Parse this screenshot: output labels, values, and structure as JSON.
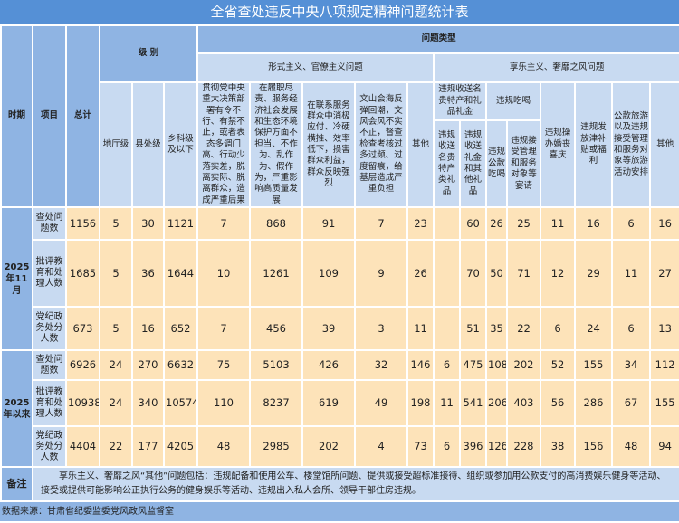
{
  "title": "全省查处违反中央八项规定精神问题统计表",
  "header": {
    "period": "时期",
    "item": "项目",
    "total": "总计",
    "level": "级 别",
    "problem_type": "问题类型",
    "levels": [
      "地厅级",
      "县处级",
      "乡科级及以下"
    ],
    "formalism": "形式主义、官僚主义问题",
    "formalism_cols": [
      "贯彻党中央重大决策部署有令不行、有禁不止，或者表态多调门高、行动少落实差，脱离实际、脱离群众，造成严重后果",
      "在履职尽责、服务经济社会发展和生态环境保护方面不担当、不作为、乱作为、假作为，严重影响高质量发展",
      "在联系服务群众中消极应付、冷硬横推、效率低下，损害群众利益，群众反映强烈",
      "文山会海反弹回潮，文风会风不实不正，督查检查考核过多过频、过度留痕，给基层造成严重负担",
      "其他"
    ],
    "hedonism": "享乐主义、奢靡之风问题",
    "gift_group": "违规收送名贵特产和礼品礼金",
    "gift_cols": [
      "违规收送名贵特产类礼品",
      "违规收送礼金和其他礼品"
    ],
    "dining_group": "违规吃喝",
    "dining_cols": [
      "违规公款吃喝",
      "违规接受管理和服务对象等宴请"
    ],
    "other_cols": [
      "违规操办婚丧喜庆",
      "违规发放津补贴或福利",
      "公款旅游以及违规接受管理和服务对象等旅游活动安排",
      "其他"
    ]
  },
  "periods": [
    {
      "label": "2025年11月",
      "rows": [
        {
          "item": "查处问题数",
          "values": [
            "1156",
            "5",
            "30",
            "1121",
            "7",
            "868",
            "91",
            "7",
            "23",
            "",
            "60",
            "26",
            "25",
            "11",
            "16",
            "6",
            "16"
          ]
        },
        {
          "item": "批评教育和处理人数",
          "values": [
            "1685",
            "5",
            "36",
            "1644",
            "10",
            "1261",
            "109",
            "9",
            "26",
            "",
            "70",
            "50",
            "71",
            "12",
            "29",
            "11",
            "27"
          ]
        },
        {
          "item": "党纪政务处分人数",
          "values": [
            "673",
            "5",
            "16",
            "652",
            "7",
            "456",
            "39",
            "3",
            "11",
            "",
            "51",
            "35",
            "22",
            "6",
            "24",
            "6",
            "13"
          ]
        }
      ]
    },
    {
      "label": "2025年以来",
      "rows": [
        {
          "item": "查处问题数",
          "values": [
            "6926",
            "24",
            "270",
            "6632",
            "75",
            "5103",
            "426",
            "32",
            "146",
            "6",
            "475",
            "108",
            "202",
            "52",
            "155",
            "34",
            "112"
          ]
        },
        {
          "item": "批评教育和处理人数",
          "values": [
            "10938",
            "24",
            "340",
            "10574",
            "110",
            "8237",
            "619",
            "49",
            "198",
            "11",
            "541",
            "206",
            "403",
            "56",
            "286",
            "67",
            "155"
          ]
        },
        {
          "item": "党纪政务处分人数",
          "values": [
            "4404",
            "22",
            "177",
            "4205",
            "48",
            "2985",
            "202",
            "4",
            "73",
            "6",
            "396",
            "126",
            "228",
            "38",
            "156",
            "48",
            "94"
          ]
        }
      ]
    }
  ],
  "note": {
    "label": "备注",
    "text": "享乐主义、奢靡之风“其他”问题包括：违规配备和使用公车、楼堂馆所问题、提供或接受超标准接待、组织或参加用公款支付的高消费娱乐健身等活动、接受或提供可能影响公正执行公务的健身娱乐等活动、违规出入私人会所、领导干部住房违规。"
  },
  "source": "数据来源：甘肃省纪委监委党风政风监督室",
  "colors": {
    "title": "#5590d6",
    "header_dark": "#8fb4e3",
    "header_light": "#c8daf1",
    "data": "#fde3b9"
  }
}
